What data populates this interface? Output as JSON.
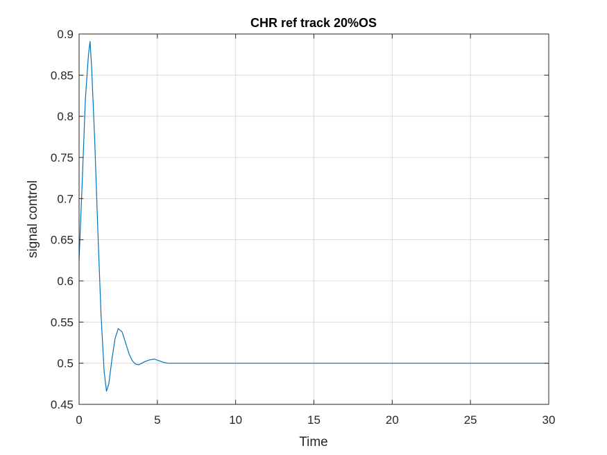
{
  "chart_data": {
    "type": "line",
    "title": "CHR ref track 20%OS",
    "xlabel": "Time",
    "ylabel": "signal control",
    "xlim": [
      0,
      30
    ],
    "ylim": [
      0.45,
      0.9
    ],
    "x_ticks": [
      0,
      5,
      10,
      15,
      20,
      25,
      30
    ],
    "x_tick_labels": [
      "0",
      "5",
      "10",
      "15",
      "20",
      "25",
      "30"
    ],
    "y_ticks": [
      0.45,
      0.5,
      0.55,
      0.6,
      0.65,
      0.7,
      0.75,
      0.8,
      0.85,
      0.9
    ],
    "y_tick_labels": [
      "0.45",
      "0.5",
      "0.55",
      "0.6",
      "0.65",
      "0.7",
      "0.75",
      "0.8",
      "0.85",
      "0.9"
    ],
    "grid": true,
    "colors": {
      "series": "#0072bd",
      "grid": "#dcdcdc",
      "axes": "#262626"
    },
    "series": [
      {
        "x": [
          0,
          0.2,
          0.4,
          0.6,
          0.7,
          0.8,
          1.0,
          1.2,
          1.4,
          1.6,
          1.75,
          1.9,
          2.1,
          2.3,
          2.5,
          2.75,
          3.0,
          3.2,
          3.4,
          3.6,
          3.8,
          4.0,
          4.2,
          4.5,
          4.8,
          5.1,
          5.4,
          5.7,
          6.0,
          6.5,
          7,
          8,
          10,
          12,
          15,
          20,
          25,
          30
        ],
        "y": [
          0.625,
          0.72,
          0.82,
          0.875,
          0.891,
          0.86,
          0.77,
          0.66,
          0.56,
          0.49,
          0.466,
          0.475,
          0.505,
          0.53,
          0.542,
          0.538,
          0.523,
          0.511,
          0.503,
          0.499,
          0.498,
          0.5,
          0.502,
          0.504,
          0.505,
          0.503,
          0.501,
          0.5,
          0.5,
          0.5,
          0.5,
          0.5,
          0.5,
          0.5,
          0.5,
          0.5,
          0.5,
          0.5
        ]
      }
    ]
  }
}
